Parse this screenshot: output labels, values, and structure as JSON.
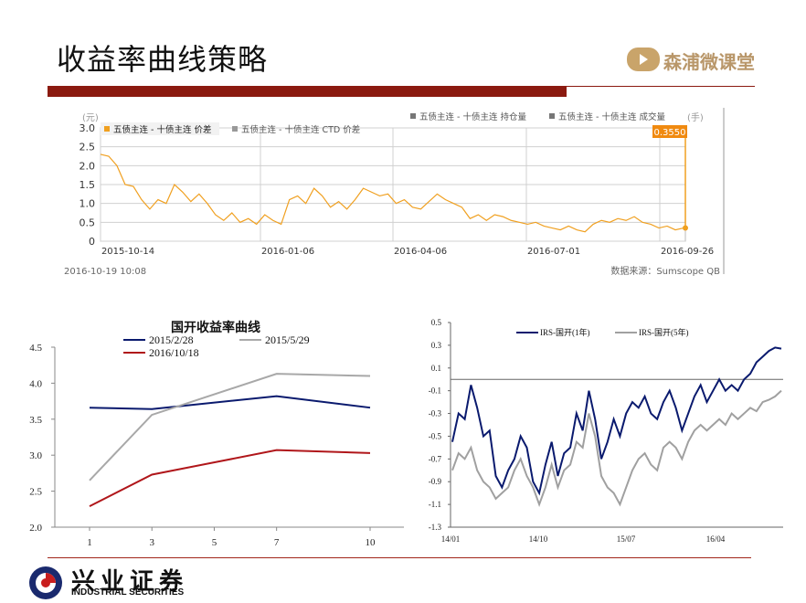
{
  "page": {
    "title": "收益率曲线策略",
    "brand": "森浦微课堂"
  },
  "footer": {
    "company_cn": "兴业证券",
    "company_en": "INDUSTRIAL SECURITIES"
  },
  "colors": {
    "accent_red": "#8b1a10",
    "brand_gold": "#c9a46a"
  },
  "chart_data": [
    {
      "type": "line",
      "y_unit_left": "(元)",
      "y_unit_right": "(手)",
      "legend": [
        {
          "name": "五债主连 - 十债主连 价差",
          "color": "#f0a020",
          "active": true
        },
        {
          "name": "五债主连 - 十债主连 CTD 价差",
          "color": "#999999",
          "active": false
        },
        {
          "name": "五债主连 - 十债主连 持仓量",
          "color": "#777777",
          "active": false
        },
        {
          "name": "五债主连 - 十债主连 成交量",
          "color": "#777777",
          "active": false
        }
      ],
      "ylim": [
        0,
        3.0
      ],
      "yticks": [
        "3.0",
        "2.5",
        "2.0",
        "1.5",
        "1.0",
        "0.5",
        "0"
      ],
      "xticks": [
        "2015-10-14",
        "2016-01-06",
        "2016-04-06",
        "2016-07-01",
        "2016-09-26"
      ],
      "last_value": "0.3550",
      "timestamp": "2016-10-19 10:08",
      "source": "数据来源：Sumscope QB",
      "series": [
        {
          "name": "五债主连 - 十债主连 价差",
          "color": "#f0a020",
          "values": [
            2.3,
            2.25,
            2.0,
            1.5,
            1.45,
            1.1,
            0.85,
            1.1,
            1.0,
            1.5,
            1.3,
            1.05,
            1.25,
            1.0,
            0.7,
            0.55,
            0.75,
            0.5,
            0.6,
            0.45,
            0.7,
            0.55,
            0.45,
            1.1,
            1.2,
            1.0,
            1.4,
            1.2,
            0.9,
            1.05,
            0.85,
            1.1,
            1.4,
            1.3,
            1.2,
            1.25,
            1.0,
            1.1,
            0.9,
            0.85,
            1.05,
            1.25,
            1.1,
            1.0,
            0.9,
            0.6,
            0.7,
            0.55,
            0.7,
            0.65,
            0.55,
            0.5,
            0.45,
            0.5,
            0.4,
            0.35,
            0.3,
            0.4,
            0.3,
            0.25,
            0.45,
            0.55,
            0.5,
            0.6,
            0.55,
            0.65,
            0.5,
            0.45,
            0.35,
            0.4,
            0.3,
            0.35
          ]
        }
      ]
    },
    {
      "type": "line",
      "title": "国开收益率曲线",
      "categories": [
        1,
        3,
        5,
        7,
        10
      ],
      "xticks": [
        "1",
        "3",
        "5",
        "7",
        "10"
      ],
      "ylim": [
        2.0,
        4.5
      ],
      "yticks": [
        "4.5",
        "4.0",
        "3.5",
        "3.0",
        "2.5",
        "2.0"
      ],
      "series": [
        {
          "name": "2015/2/28",
          "color": "#0a1a6e",
          "x": [
            1,
            3,
            7,
            10
          ],
          "values": [
            3.66,
            3.64,
            3.82,
            3.66
          ]
        },
        {
          "name": "2015/5/29",
          "color": "#a8a8a8",
          "x": [
            1,
            3,
            7,
            10
          ],
          "values": [
            2.65,
            3.56,
            4.13,
            4.1
          ]
        },
        {
          "name": "2016/10/18",
          "color": "#b0161a",
          "x": [
            1,
            3,
            7,
            10
          ],
          "values": [
            2.29,
            2.73,
            3.07,
            3.03
          ]
        }
      ]
    },
    {
      "type": "line",
      "ylim": [
        -1.3,
        0.5
      ],
      "yticks": [
        "0.5",
        "0.3",
        "0.1",
        "-0.1",
        "-0.3",
        "-0.5",
        "-0.7",
        "-0.9",
        "-1.1",
        "-1.3"
      ],
      "xticks": [
        "14/01",
        "14/10",
        "15/07",
        "16/04"
      ],
      "series": [
        {
          "name": "IRS-国开(1年)",
          "color": "#0a1a6e",
          "values": [
            -0.55,
            -0.3,
            -0.35,
            -0.05,
            -0.25,
            -0.5,
            -0.45,
            -0.85,
            -0.95,
            -0.8,
            -0.7,
            -0.5,
            -0.6,
            -0.9,
            -1.0,
            -0.75,
            -0.55,
            -0.85,
            -0.65,
            -0.6,
            -0.3,
            -0.45,
            -0.1,
            -0.35,
            -0.7,
            -0.55,
            -0.35,
            -0.5,
            -0.3,
            -0.2,
            -0.25,
            -0.15,
            -0.3,
            -0.35,
            -0.2,
            -0.1,
            -0.25,
            -0.45,
            -0.3,
            -0.15,
            -0.05,
            -0.2,
            -0.1,
            0.0,
            -0.1,
            -0.05,
            -0.1,
            0.0,
            0.05,
            0.15,
            0.2,
            0.25,
            0.28,
            0.27
          ]
        },
        {
          "name": "IRS-国开(5年)",
          "color": "#a0a0a0",
          "values": [
            -0.8,
            -0.65,
            -0.7,
            -0.6,
            -0.8,
            -0.9,
            -0.95,
            -1.05,
            -1.0,
            -0.95,
            -0.8,
            -0.7,
            -0.85,
            -0.95,
            -1.1,
            -0.95,
            -0.75,
            -0.95,
            -0.8,
            -0.75,
            -0.55,
            -0.6,
            -0.3,
            -0.5,
            -0.85,
            -0.95,
            -1.0,
            -1.1,
            -0.95,
            -0.8,
            -0.7,
            -0.65,
            -0.75,
            -0.8,
            -0.6,
            -0.55,
            -0.6,
            -0.7,
            -0.55,
            -0.45,
            -0.4,
            -0.45,
            -0.4,
            -0.35,
            -0.4,
            -0.3,
            -0.35,
            -0.3,
            -0.25,
            -0.28,
            -0.2,
            -0.18,
            -0.15,
            -0.1
          ]
        }
      ]
    }
  ]
}
